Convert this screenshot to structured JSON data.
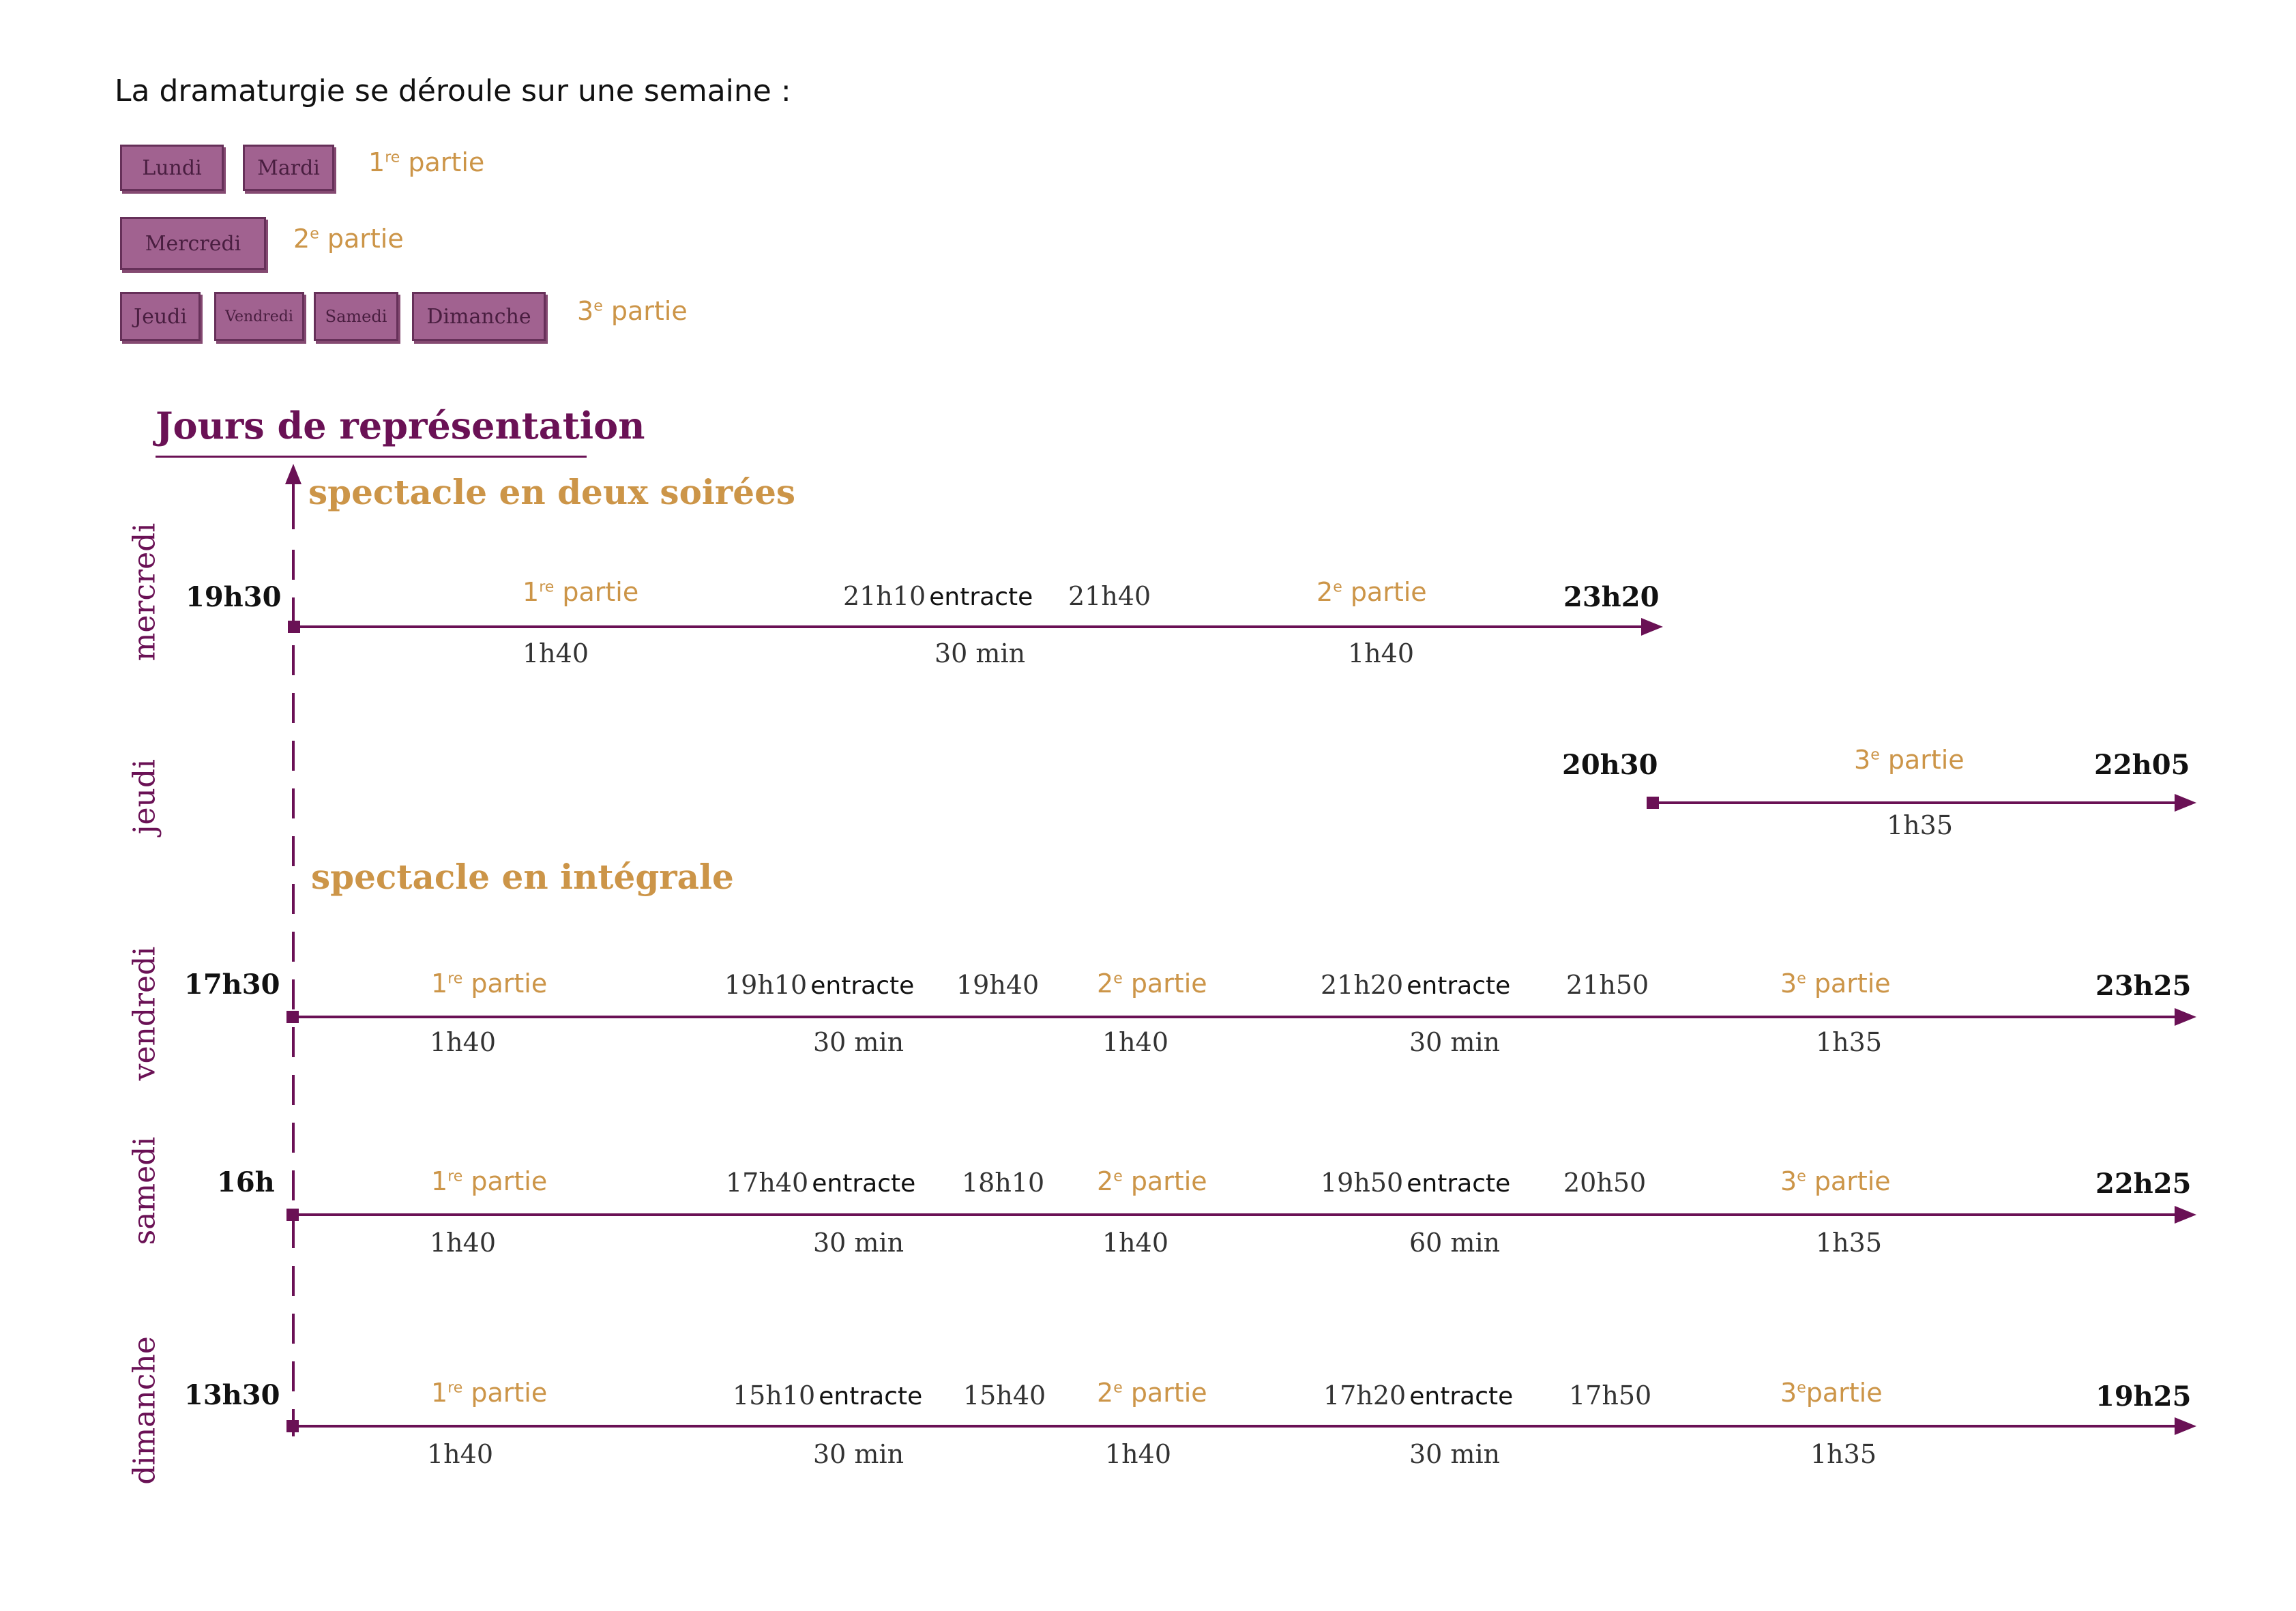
{
  "intro": "La dramaturgie se déroule sur une semaine :",
  "week": [
    {
      "days": [
        "Lundi",
        "Mardi"
      ],
      "part": "1re partie",
      "part_num": "1",
      "part_sup": "re",
      "part_text": "partie"
    },
    {
      "days": [
        "Mercredi"
      ],
      "part": "2e partie",
      "part_num": "2",
      "part_sup": "e",
      "part_text": "partie"
    },
    {
      "days": [
        "Jeudi",
        "Vendredi",
        "Samedi",
        "Dimanche"
      ],
      "part": "3e partie",
      "part_num": "3",
      "part_sup": "e",
      "part_text": "partie"
    }
  ],
  "heading": "Jours de représentation",
  "section_two_evenings": "spectacle en deux soirées",
  "section_integral": "spectacle en intégrale",
  "entracte_label": "entracte",
  "rows": {
    "mercredi": {
      "day": "mercredi",
      "start": "19h30",
      "end": "23h20",
      "parts": [
        "1re partie",
        "2e partie"
      ],
      "times": {
        "e1": "21h10",
        "r1": "21h40"
      },
      "durations": [
        "1h40",
        "30 min",
        "1h40"
      ]
    },
    "jeudi": {
      "day": "jeudi",
      "start": "20h30",
      "end": "22h05",
      "parts": [
        "3e partie"
      ],
      "durations": [
        "1h35"
      ]
    },
    "vendredi": {
      "day": "vendredi",
      "start": "17h30",
      "end": "23h25",
      "parts": [
        "1re partie",
        "2e partie",
        "3e partie"
      ],
      "times": {
        "e1": "19h10",
        "r1": "19h40",
        "e2": "21h20",
        "r2": "21h50"
      },
      "durations": [
        "1h40",
        "30 min",
        "1h40",
        "30 min",
        "1h35"
      ]
    },
    "samedi": {
      "day": "samedi",
      "start": "16h",
      "end": "22h25",
      "parts": [
        "1re partie",
        "2e partie",
        "3e partie"
      ],
      "times": {
        "e1": "17h40",
        "r1": "18h10",
        "e2": "19h50",
        "r2": "20h50"
      },
      "durations": [
        "1h40",
        "30 min",
        "1h40",
        "60 min",
        "1h35"
      ]
    },
    "dimanche": {
      "day": "dimanche",
      "start": "13h30",
      "end": "19h25",
      "parts": [
        "1re partie",
        "2e partie",
        "3e partie"
      ],
      "times": {
        "e1": "15h10",
        "r1": "15h40",
        "e2": "17h20",
        "r2": "17h50"
      },
      "durations": [
        "1h40",
        "30 min",
        "1h40",
        "30 min",
        "1h35"
      ]
    }
  },
  "colors": {
    "plum": "#6a1155",
    "ochre": "#cc9548",
    "box": "#9a5587"
  }
}
